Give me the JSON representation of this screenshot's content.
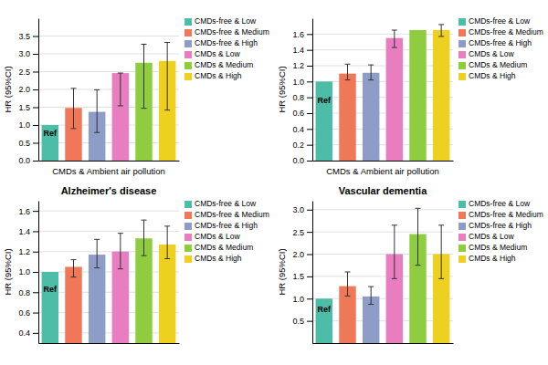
{
  "chart_data": [
    {
      "type": "bar",
      "xlabel": "CMDs & Ambient air pollution",
      "ylabel": "HR (95%CI)",
      "categories": [
        "CMDs-free & Low",
        "CMDs-free & Medium",
        "CMDs-free & High",
        "CMDs & Low",
        "CMDs & Medium",
        "CMDs & High"
      ],
      "values": [
        1.0,
        1.48,
        1.37,
        2.46,
        2.75,
        2.8
      ],
      "errors_low": [
        0.0,
        0.58,
        0.58,
        0.92,
        1.28,
        1.38
      ],
      "errors_high": [
        0.0,
        0.55,
        0.62,
        0.0,
        0.52,
        0.52
      ],
      "colors": [
        "#4DBDA8",
        "#F07858",
        "#8E9DC8",
        "#E87EC0",
        "#8FCC40",
        "#EED020"
      ],
      "ylim": [
        0,
        4.0
      ],
      "yticks": [
        {
          "value": 0,
          "label": "0.0"
        },
        0.5,
        {
          "value": 1.0,
          "label": "1.0"
        },
        1.5,
        {
          "value": 2.0,
          "label": "2.0"
        },
        2.5,
        {
          "value": 3.0,
          "label": "3.0"
        },
        3.5
      ],
      "annotations": [
        {
          "text": "Ref",
          "category": "CMDs-free & Low"
        }
      ],
      "grid": true,
      "legend": "right",
      "tick_labels": "y"
    },
    {
      "type": "bar",
      "xlabel": "CMDs & Ambient air pollution",
      "ylabel": "HR (95%CI)",
      "categories": [
        "CMDs-free & Low",
        "CMDs-free & Medium",
        "CMDs-free & High",
        "CMDs & Low",
        "CMDs & Medium",
        "CMDs & High"
      ],
      "values": [
        1.0,
        1.1,
        1.11,
        1.55,
        1.65,
        1.65
      ],
      "errors_low": [
        0.0,
        0.08,
        0.09,
        0.12,
        0.0,
        0.08
      ],
      "errors_high": [
        0.0,
        0.12,
        0.1,
        0.1,
        0.0,
        0.07
      ],
      "colors": [
        "#4DBDA8",
        "#F07858",
        "#8E9DC8",
        "#E87EC0",
        "#8FCC40",
        "#EED020"
      ],
      "ylim": [
        0,
        1.8
      ],
      "yticks": [
        {
          "value": 0,
          "label": "0.0"
        },
        0.2,
        0.4,
        0.6,
        0.8,
        {
          "value": 1.0,
          "label": "1.0"
        },
        1.2,
        1.4,
        1.6
      ],
      "annotations": [
        {
          "text": "Ref",
          "category": "CMDs-free & Low"
        }
      ],
      "grid": true,
      "legend": "right",
      "tick_labels": "y"
    },
    {
      "type": "bar",
      "title": "Alzheimer's disease",
      "ylabel": "HR (95%CI)",
      "categories": [
        "CMDs-free & Low",
        "CMDs-free & Medium",
        "CMDs-free & High",
        "CMDs & Low",
        "CMDs & Medium",
        "CMDs & High"
      ],
      "values": [
        1.0,
        1.05,
        1.17,
        1.2,
        1.33,
        1.27
      ],
      "errors_low": [
        0.0,
        0.1,
        0.13,
        0.17,
        0.17,
        0.14
      ],
      "errors_high": [
        0.0,
        0.07,
        0.15,
        0.18,
        0.18,
        0.18
      ],
      "colors": [
        "#4DBDA8",
        "#F07858",
        "#8E9DC8",
        "#E87EC0",
        "#8FCC40",
        "#EED020"
      ],
      "ylim": [
        0.3,
        1.7
      ],
      "yticks": [
        0.4,
        0.6,
        0.8,
        {
          "value": 1.0,
          "label": "1.0"
        },
        1.2,
        1.4,
        1.6
      ],
      "annotations": [
        {
          "text": "Ref",
          "category": "CMDs-free & Low"
        }
      ],
      "grid": true,
      "legend": "right",
      "tick_labels": "y"
    },
    {
      "type": "bar",
      "title": "Vascular dementia",
      "ylabel": "HR (95%CI)",
      "categories": [
        "CMDs-free & Low",
        "CMDs-free & Medium",
        "CMDs-free & High",
        "CMDs & Low",
        "CMDs & Medium",
        "CMDs & High"
      ],
      "values": [
        1.0,
        1.28,
        1.05,
        2.0,
        2.45,
        2.0
      ],
      "errors_low": [
        0.0,
        0.22,
        0.18,
        0.55,
        0.7,
        0.55
      ],
      "errors_high": [
        0.0,
        0.32,
        0.22,
        0.65,
        0.58,
        0.65
      ],
      "colors": [
        "#4DBDA8",
        "#F07858",
        "#8E9DC8",
        "#E87EC0",
        "#8FCC40",
        "#EED020"
      ],
      "ylim": [
        0,
        3.2
      ],
      "yticks": [
        0.5,
        {
          "value": 1.0,
          "label": "1.0"
        },
        1.5,
        {
          "value": 2.0,
          "label": "2.0"
        },
        2.5,
        {
          "value": 3.0,
          "label": "3.0"
        }
      ],
      "annotations": [
        {
          "text": "Ref",
          "category": "CMDs-free & Low"
        }
      ],
      "grid": true,
      "legend": "right",
      "tick_labels": "y"
    }
  ]
}
